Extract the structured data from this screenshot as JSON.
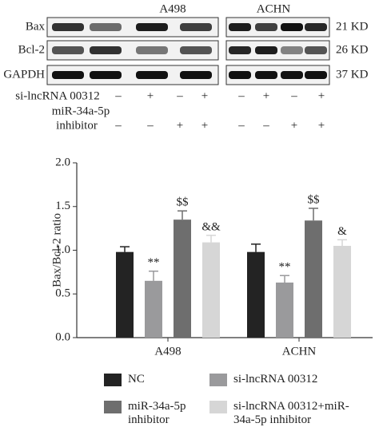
{
  "blot": {
    "cell_lines": [
      "A498",
      "ACHN"
    ],
    "proteins": [
      "Bax",
      "Bcl-2",
      "GAPDH"
    ],
    "sizes": [
      "21 KD",
      "26 KD",
      "37 KD"
    ],
    "treatments": [
      {
        "label": [
          "si-lncRNA 00312"
        ],
        "signs": [
          "–",
          "+",
          "–",
          "+",
          "–",
          "+",
          "–",
          "+"
        ]
      },
      {
        "label": [
          "miR-34a-5p",
          "inhibitor"
        ],
        "signs": [
          "–",
          "–",
          "+",
          "+",
          "–",
          "–",
          "+",
          "+"
        ]
      }
    ]
  },
  "chart_data": {
    "type": "bar",
    "y_label": "Bax/Bcl-2 ratio",
    "categories": [
      "A498",
      "ACHN"
    ],
    "series": [
      {
        "name": "NC",
        "color": "#232323",
        "values": [
          0.98,
          0.98
        ],
        "errors": [
          0.06,
          0.09
        ]
      },
      {
        "name": "si-lncRNA 00312",
        "color": "#9a9a9c",
        "values": [
          0.65,
          0.63
        ],
        "errors": [
          0.11,
          0.08
        ],
        "annotations": [
          "**",
          "**"
        ]
      },
      {
        "name": "miR-34a-5p inhibitor",
        "color": "#6e6e6e",
        "values": [
          1.35,
          1.34
        ],
        "errors": [
          0.1,
          0.14
        ],
        "annotations": [
          "$$",
          "$$"
        ]
      },
      {
        "name": "si-lncRNA 00312+miR-34a-5p inhibitor",
        "color": "#d6d6d6",
        "values": [
          1.09,
          1.05
        ],
        "errors": [
          0.08,
          0.07
        ],
        "annotations": [
          "&&",
          "&"
        ]
      }
    ],
    "ylim": [
      0,
      2
    ],
    "yticks": [
      {
        "value": 0,
        "label": "0.0"
      },
      {
        "value": 0.5,
        "label": "0.5"
      },
      {
        "value": 1,
        "label": "1.0"
      },
      {
        "value": 1.5,
        "label": "1.5"
      },
      {
        "value": 2,
        "label": "2.0"
      }
    ],
    "grid": false
  }
}
